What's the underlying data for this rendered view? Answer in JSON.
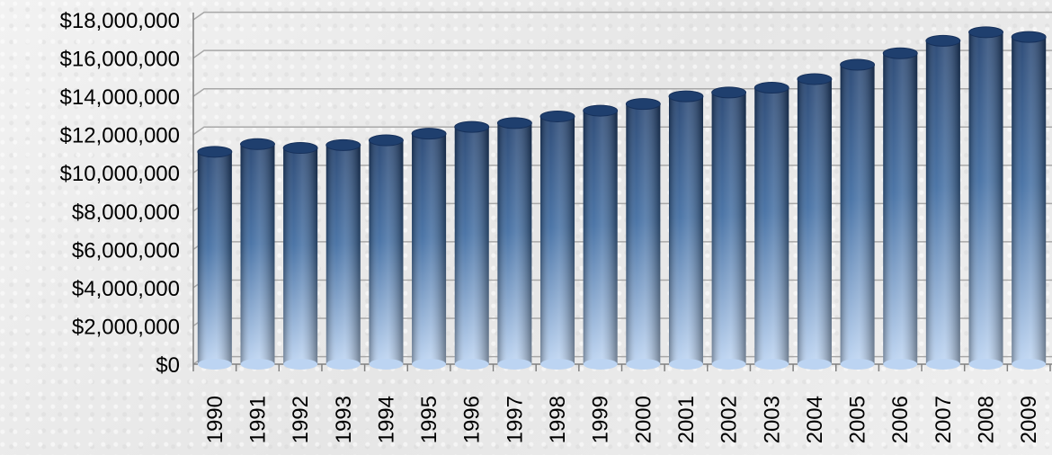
{
  "chart_data": {
    "type": "bar",
    "title": "",
    "xlabel": "",
    "ylabel": "",
    "categories": [
      "1990",
      "1991",
      "1992",
      "1993",
      "1994",
      "1995",
      "1996",
      "1997",
      "1998",
      "1999",
      "2000",
      "2001",
      "2002",
      "2003",
      "2004",
      "2005",
      "2006",
      "2007",
      "2008",
      "2009"
    ],
    "values": [
      11100000,
      11500000,
      11300000,
      11450000,
      11700000,
      12050000,
      12400000,
      12600000,
      12950000,
      13250000,
      13600000,
      14000000,
      14200000,
      14450000,
      14900000,
      15650000,
      16250000,
      16900000,
      17350000,
      17100000
    ],
    "ylim": [
      0,
      18000000
    ],
    "yticks": [
      0,
      2000000,
      4000000,
      6000000,
      8000000,
      10000000,
      12000000,
      14000000,
      16000000,
      18000000
    ],
    "ytick_labels": [
      "$0",
      "$2,000,000",
      "$4,000,000",
      "$6,000,000",
      "$8,000,000",
      "$10,000,000",
      "$12,000,000",
      "$14,000,000",
      "$16,000,000",
      "$18,000,000"
    ],
    "grid": true,
    "legend": "none",
    "colors": {
      "bar_top": "#1f3f6e",
      "bar_mid": "#3d6aa0",
      "bar_bottom": "#bcd4f2",
      "grid": "#a8a8a8",
      "axis": "#808080"
    }
  }
}
